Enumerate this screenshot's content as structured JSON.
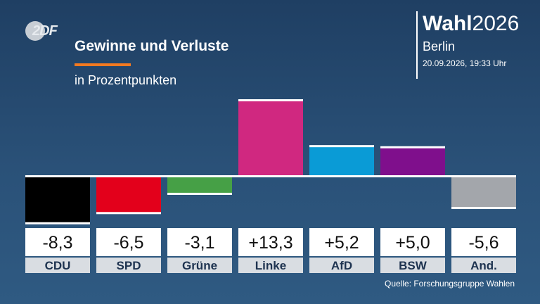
{
  "logo": {
    "text": "2DF"
  },
  "header": {
    "title": "Gewinne und Verluste",
    "subtitle": "in Prozentpunkten",
    "wahl_bold": "Wahl",
    "wahl_year": "2026",
    "city": "Berlin",
    "timestamp": "20.09.2026, 19:33 Uhr"
  },
  "source": "Quelle: Forschungsgruppe Wahlen",
  "colors": {
    "CDU": "#000000",
    "SPD": "#e3001b",
    "Grüne": "#46a046",
    "Linke": "#d02880",
    "AfD": "#0a9bd6",
    "BSW": "#7f0f8c",
    "And.": "#a3a6ab"
  },
  "chart_data": {
    "type": "bar",
    "title": "Gewinne und Verluste",
    "subtitle": "in Prozentpunkten",
    "categories": [
      "CDU",
      "SPD",
      "Grüne",
      "Linke",
      "AfD",
      "BSW",
      "And."
    ],
    "values": [
      -8.3,
      -6.5,
      -3.1,
      13.3,
      5.2,
      5.0,
      -5.6
    ],
    "value_labels": [
      "-8,3",
      "-6,5",
      "-3,1",
      "+13,3",
      "+5,2",
      "+5,0",
      "-5,6"
    ],
    "xlabel": "",
    "ylabel": "",
    "grid": false,
    "legend": "none"
  }
}
